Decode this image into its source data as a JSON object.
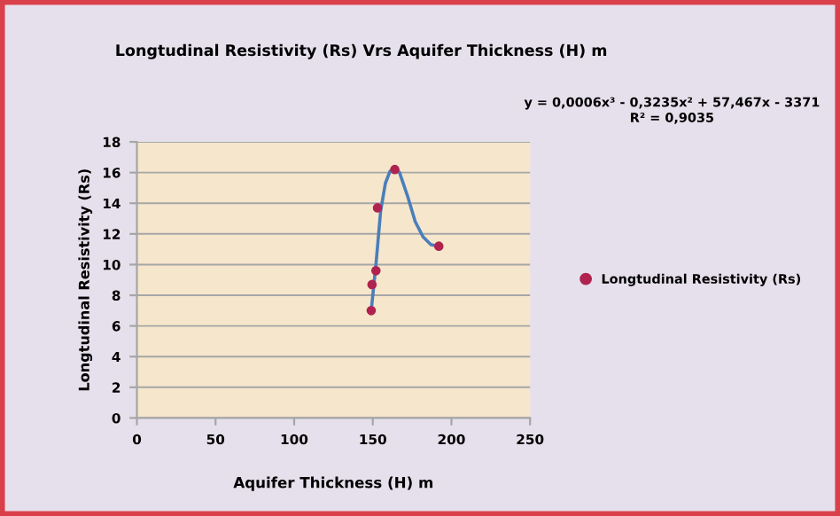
{
  "chart_data": {
    "type": "scatter",
    "title": "Longtudinal Resistivity (Rs) Vrs Aquifer Thickness (H) m",
    "xlabel": "Aquifer Thickness (H) m",
    "ylabel": "Longtudinal Resistivity (Rs)",
    "series": [
      {
        "name": "Longtudinal Resistivity (Rs)",
        "color": "#b0234f",
        "marker": "circle",
        "x": [
          149,
          149.5,
          152,
          153,
          164,
          192
        ],
        "values": [
          7.0,
          8.7,
          9.6,
          13.7,
          16.2,
          11.2
        ]
      },
      {
        "type": "line",
        "color": "#4a7ebb",
        "line_style": "solid",
        "marker": "none",
        "x": [
          149,
          152,
          155,
          158,
          161,
          164,
          167,
          172,
          177,
          182,
          187,
          192
        ],
        "values": [
          7.0,
          10.0,
          13.5,
          15.3,
          16.1,
          16.3,
          16.0,
          14.5,
          12.8,
          11.8,
          11.3,
          11.2
        ]
      }
    ],
    "annotations": [
      "y = 0,0006x³ - 0,3235x² + 57,467x - 3371\nR² = 0,9035"
    ],
    "xlim": [
      0,
      250
    ],
    "xticks": [
      0,
      50,
      100,
      150,
      200,
      250
    ],
    "ylim": [
      0,
      18
    ],
    "yticks": [
      0,
      2,
      4,
      6,
      8,
      10,
      12,
      14,
      16,
      18
    ],
    "grid": "y",
    "legend": "right"
  }
}
